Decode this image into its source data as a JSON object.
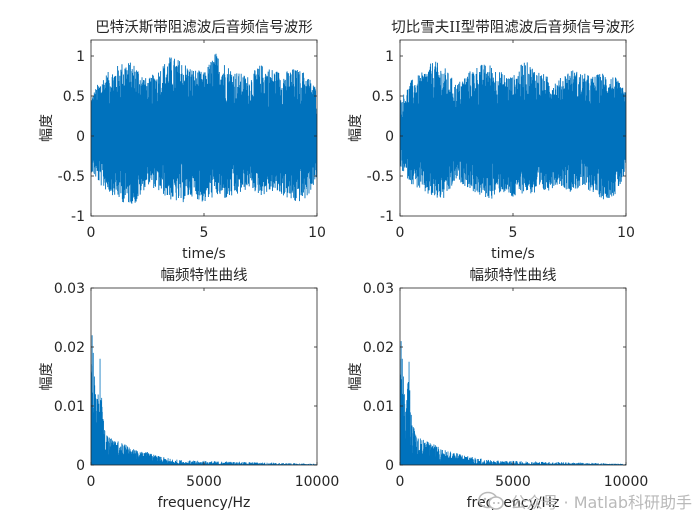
{
  "chart_data": [
    {
      "type": "line",
      "title": "巴特沃斯带阻滤波后音频信号波形",
      "xlabel": "time/s",
      "ylabel": "幅度",
      "xlim": [
        0,
        10
      ],
      "ylim": [
        -1,
        1.2
      ],
      "xticks": [
        "0",
        "5",
        "10"
      ],
      "yticks": [
        "-1",
        "-0.5",
        "0",
        "0.5",
        "1"
      ],
      "series": [
        {
          "color": "#0072bd",
          "description": "dense noise-like audio waveform",
          "x": [
            0.0,
            0.5,
            1.0,
            1.5,
            2.0,
            2.5,
            3.0,
            3.5,
            4.0,
            4.5,
            5.0,
            5.5,
            6.0,
            6.5,
            7.0,
            7.5,
            8.0,
            8.5,
            9.0,
            9.5,
            10.0
          ],
          "envelope_max": [
            0.5,
            0.75,
            0.85,
            0.95,
            0.9,
            0.7,
            0.85,
            1.0,
            0.95,
            0.85,
            0.8,
            1.05,
            0.9,
            0.8,
            0.75,
            0.9,
            0.85,
            0.8,
            0.85,
            0.8,
            0.6
          ],
          "envelope_min": [
            -0.45,
            -0.65,
            -0.75,
            -0.85,
            -0.85,
            -0.6,
            -0.7,
            -0.8,
            -0.85,
            -0.75,
            -0.85,
            -0.75,
            -0.8,
            -0.75,
            -0.65,
            -0.75,
            -0.7,
            -0.75,
            -0.85,
            -0.8,
            -0.55
          ]
        }
      ]
    },
    {
      "type": "line",
      "title": "切比雪夫II型带阻滤波后音频信号波形",
      "xlabel": "time/s",
      "ylabel": "幅度",
      "xlim": [
        0,
        10
      ],
      "ylim": [
        -1,
        1.2
      ],
      "xticks": [
        "0",
        "5",
        "10"
      ],
      "yticks": [
        "-1",
        "-0.5",
        "0",
        "0.5",
        "1"
      ],
      "series": [
        {
          "color": "#0072bd",
          "description": "dense noise-like audio waveform",
          "x": [
            0.0,
            0.5,
            1.0,
            1.5,
            2.0,
            2.5,
            3.0,
            3.5,
            4.0,
            4.5,
            5.0,
            5.5,
            6.0,
            6.5,
            7.0,
            7.5,
            8.0,
            8.5,
            9.0,
            9.5,
            10.0
          ],
          "envelope_max": [
            0.45,
            0.7,
            0.8,
            0.95,
            0.85,
            0.65,
            0.8,
            0.9,
            0.9,
            0.8,
            0.75,
            0.95,
            0.85,
            0.75,
            0.7,
            0.85,
            0.8,
            0.75,
            0.8,
            0.75,
            0.55
          ],
          "envelope_min": [
            -0.4,
            -0.6,
            -0.7,
            -0.8,
            -0.8,
            -0.55,
            -0.65,
            -0.75,
            -0.8,
            -0.7,
            -0.8,
            -0.7,
            -0.75,
            -0.7,
            -0.6,
            -0.7,
            -0.65,
            -0.7,
            -0.8,
            -0.75,
            -0.5
          ]
        }
      ]
    },
    {
      "type": "line",
      "title": "幅频特性曲线",
      "xlabel": "frequency/Hz",
      "ylabel": "幅度",
      "xlim": [
        0,
        10000
      ],
      "ylim": [
        0,
        0.03
      ],
      "xticks": [
        "0",
        "5000",
        "10000"
      ],
      "yticks": [
        "0",
        "0.01",
        "0.02",
        "0.03"
      ],
      "series": [
        {
          "color": "#0072bd",
          "description": "magnitude spectrum, concentrated below ~3000 Hz",
          "x": [
            50,
            100,
            150,
            200,
            300,
            400,
            500,
            700,
            900,
            1200,
            1500,
            2000,
            2500,
            3000,
            4000,
            5000,
            6000,
            7000,
            8000,
            9000,
            10000
          ],
          "y": [
            0.022,
            0.019,
            0.015,
            0.012,
            0.011,
            0.018,
            0.009,
            0.005,
            0.0045,
            0.004,
            0.0035,
            0.0025,
            0.0022,
            0.0015,
            0.0008,
            0.0007,
            0.0006,
            0.0005,
            0.0004,
            0.0003,
            0.0002
          ]
        }
      ]
    },
    {
      "type": "line",
      "title": "幅频特性曲线",
      "xlabel": "frequency/Hz",
      "ylabel": "幅度",
      "xlim": [
        0,
        10000
      ],
      "ylim": [
        0,
        0.03
      ],
      "xticks": [
        "0",
        "5000",
        "10000"
      ],
      "yticks": [
        "0",
        "0.01",
        "0.02",
        "0.03"
      ],
      "series": [
        {
          "color": "#0072bd",
          "description": "magnitude spectrum, concentrated below ~3000 Hz",
          "x": [
            50,
            100,
            150,
            200,
            300,
            400,
            500,
            700,
            900,
            1200,
            1500,
            2000,
            2500,
            3000,
            4000,
            5000,
            6000,
            7000,
            8000,
            9000,
            10000
          ],
          "y": [
            0.021,
            0.018,
            0.015,
            0.012,
            0.011,
            0.0175,
            0.0085,
            0.005,
            0.0045,
            0.004,
            0.0035,
            0.0025,
            0.002,
            0.0015,
            0.0008,
            0.0007,
            0.0006,
            0.0005,
            0.0004,
            0.0003,
            0.0002
          ]
        }
      ]
    }
  ],
  "watermark": {
    "text": "公众号 · Matlab科研助手",
    "icon": "wechat-icon",
    "color": "#b9b9b9"
  },
  "style": {
    "line_color": "#0072bd",
    "axis_color": "#262626",
    "background": "#ffffff"
  }
}
